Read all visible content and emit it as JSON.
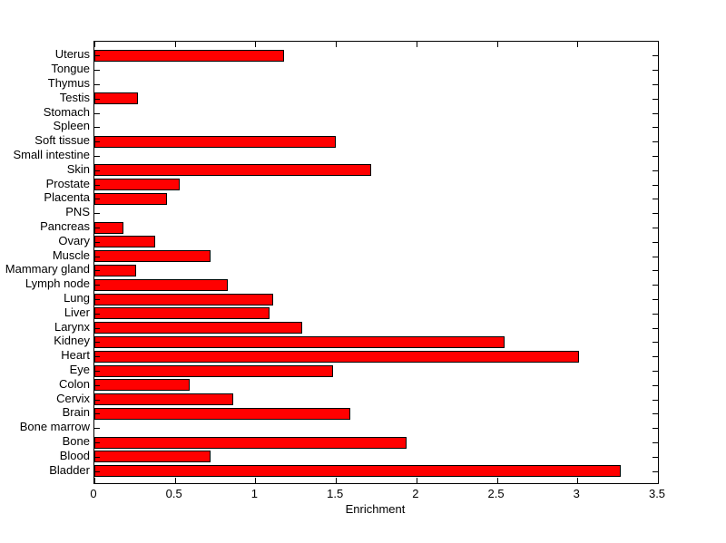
{
  "figure": {
    "background": "#ffffff",
    "axis_color": "#000000",
    "text_color": "#000000"
  },
  "chart_data": {
    "type": "bar",
    "orientation": "horizontal",
    "title": "",
    "xlabel": "Enrichment",
    "ylabel": "",
    "grid": false,
    "legend": false,
    "xlim": [
      0,
      3.5
    ],
    "xticks": [
      0,
      0.5,
      1,
      1.5,
      2,
      2.5,
      3,
      3.5
    ],
    "xtick_labels": [
      "0",
      "0.5",
      "1",
      "1.5",
      "2",
      "2.5",
      "3",
      "3.5"
    ],
    "bar_color": "#ff0000",
    "bar_edge_color": "#000000",
    "categories_top_to_bottom": [
      "Uterus",
      "Tongue",
      "Thymus",
      "Testis",
      "Stomach",
      "Spleen",
      "Soft tissue",
      "Small intestine",
      "Skin",
      "Prostate",
      "Placenta",
      "PNS",
      "Pancreas",
      "Ovary",
      "Muscle",
      "Mammary gland",
      "Lymph node",
      "Lung",
      "Liver",
      "Larynx",
      "Kidney",
      "Heart",
      "Eye",
      "Colon",
      "Cervix",
      "Brain",
      "Bone marrow",
      "Bone",
      "Blood",
      "Bladder"
    ],
    "values": [
      1.18,
      0,
      0,
      0.27,
      0,
      0,
      1.5,
      0,
      1.72,
      0.53,
      0.45,
      0,
      0.18,
      0.38,
      0.72,
      0.26,
      0.83,
      1.11,
      1.09,
      1.29,
      2.55,
      3.01,
      1.48,
      0.59,
      0.86,
      1.59,
      0,
      1.94,
      0.72,
      3.27
    ]
  }
}
